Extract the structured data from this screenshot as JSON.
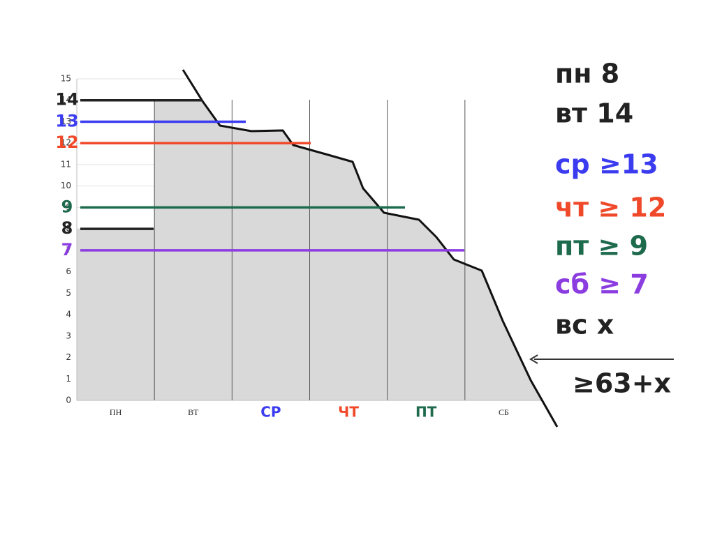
{
  "chart_data": {
    "type": "bar",
    "categories": [
      "ПН",
      "ВТ",
      "СР",
      "ЧТ",
      "ПТ",
      "СБ"
    ],
    "values": [
      8,
      14,
      13,
      12,
      9,
      7
    ],
    "color": "#d9d9d9",
    "line_colors": [
      "#222222",
      "#222222",
      "#3b3bf0",
      "#f0492a",
      "#1e6a4c",
      "#8b3de0"
    ],
    "label_colors": [
      "#222222",
      "#222222",
      "#3b3bf0",
      "#f0492a",
      "#1e6a4c",
      "#222222"
    ],
    "ylim": [
      0,
      15
    ],
    "yticks": [
      0,
      1,
      2,
      3,
      4,
      5,
      6,
      7,
      8,
      9,
      10,
      11,
      12,
      13,
      14,
      15
    ],
    "grid": true,
    "annotations": [
      "пн 8",
      "вт 14",
      "ср ≥13",
      "чт ≥ 12",
      "пт ≥ 9",
      "сб ≥ 7",
      "вс x",
      "≥63+x"
    ],
    "annotation_colors": [
      "#222222",
      "#222222",
      "#3b3bf0",
      "#f0492a",
      "#1e6a4c",
      "#8b3de0",
      "#222222",
      "#222222"
    ]
  }
}
